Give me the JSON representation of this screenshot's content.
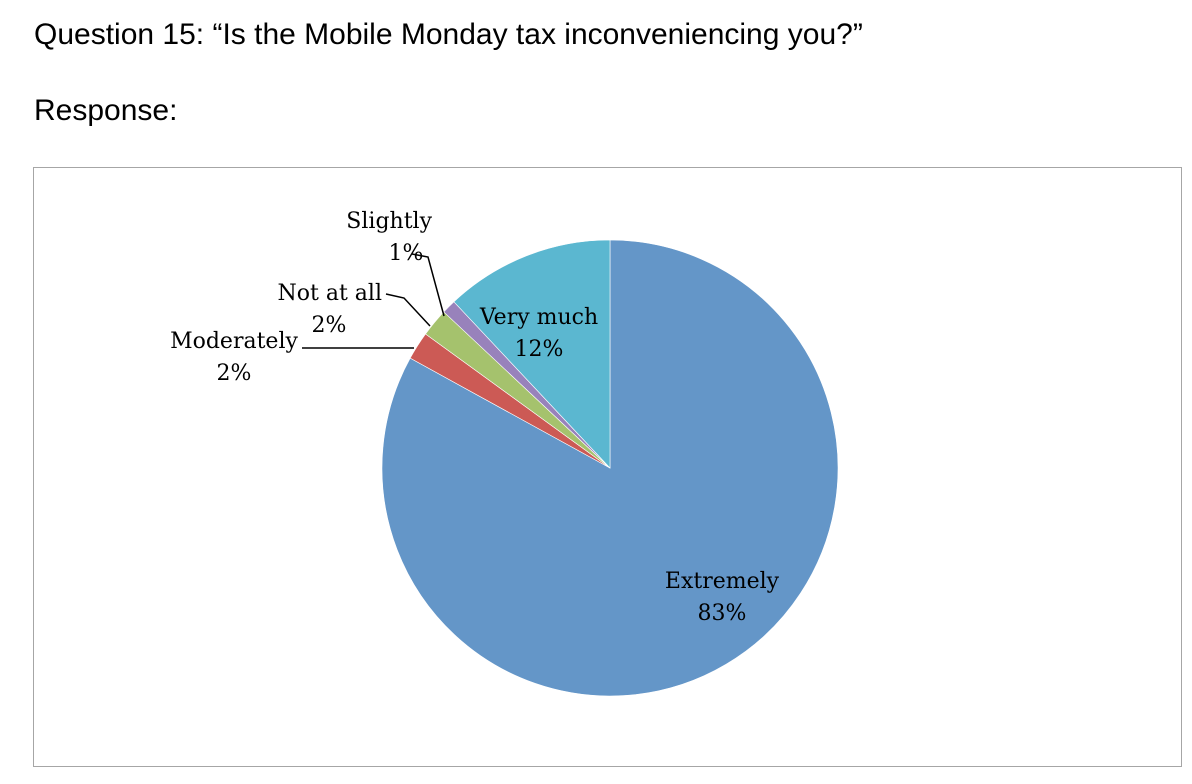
{
  "page": {
    "question": "Question 15: “Is the Mobile Monday tax inconveniencing you?”",
    "response_label": "Response:"
  },
  "colors": {
    "Extremely": "#6496C8",
    "Moderately": "#CC5A55",
    "Not at all": "#A5C26D",
    "Slightly": "#9882BB",
    "Very much": "#5BB7D0",
    "border": "#a6a6a6"
  },
  "chart_data": {
    "type": "pie",
    "title": "",
    "slices": [
      {
        "label": "Extremely",
        "value": 83,
        "display": "83%"
      },
      {
        "label": "Moderately",
        "value": 2,
        "display": "2%"
      },
      {
        "label": "Not at all",
        "value": 2,
        "display": "2%"
      },
      {
        "label": "Slightly",
        "value": 1,
        "display": "1%"
      },
      {
        "label": "Very much",
        "value": 12,
        "display": "12%"
      }
    ],
    "start_angle": "12 o'clock",
    "direction": "clockwise",
    "legend": "none",
    "data_labels": "category name and percentage"
  }
}
